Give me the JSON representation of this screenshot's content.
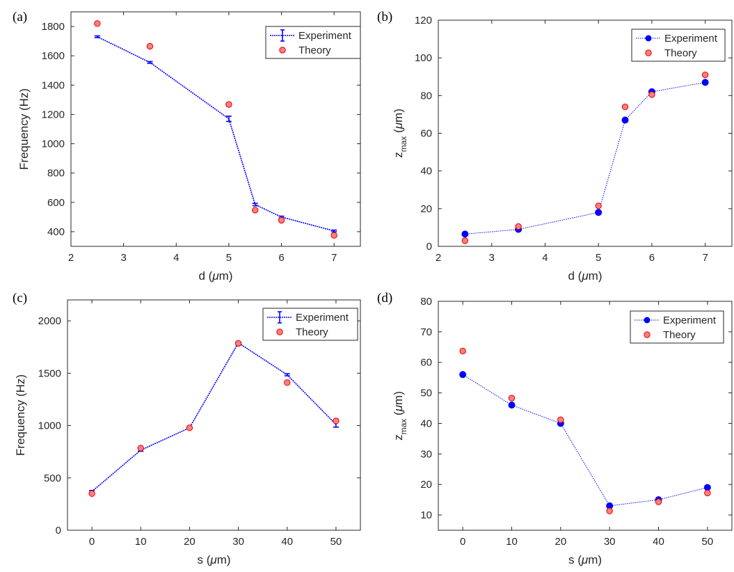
{
  "figure": {
    "panels": [
      "(a)",
      "(b)",
      "(c)",
      "(d)"
    ]
  },
  "colors": {
    "experiment": "#0000ff",
    "theory_fill": "#ff7f7f",
    "theory_edge": "#e00000",
    "axis": "#262626"
  },
  "chart_data": [
    {
      "id": "a",
      "panel_label": "(a)",
      "type": "line",
      "xlabel_pre": "d (",
      "xlabel_sym": "μ",
      "xlabel_post": "m)",
      "ylabel": "Frequency (Hz)",
      "xlim": [
        2,
        7.5
      ],
      "ylim": [
        300,
        1900
      ],
      "xticks": [
        2,
        3,
        4,
        5,
        6,
        7
      ],
      "yticks": [
        400,
        600,
        800,
        1000,
        1200,
        1400,
        1600,
        1800
      ],
      "legend_position": "top-right",
      "series": [
        {
          "name": "Experiment",
          "style": "errorbar",
          "x": [
            2.5,
            3.5,
            5,
            5.5,
            6,
            7
          ],
          "y": [
            1730,
            1555,
            1170,
            585,
            500,
            405
          ],
          "err": [
            6,
            6,
            18,
            8,
            6,
            6
          ]
        },
        {
          "name": "Theory",
          "style": "marker",
          "x": [
            2.5,
            3.5,
            5,
            5.5,
            6,
            7
          ],
          "y": [
            1820,
            1665,
            1268,
            547,
            478,
            375
          ]
        }
      ]
    },
    {
      "id": "b",
      "panel_label": "(b)",
      "type": "line",
      "xlabel_pre": "d (",
      "xlabel_sym": "μ",
      "xlabel_post": "m)",
      "ylabel": "z",
      "ylabel_sub": "max",
      "ylabel_post_pre": " (",
      "ylabel_sym": "μ",
      "ylabel_post": "m)",
      "xlim": [
        2,
        7.5
      ],
      "ylim": [
        0,
        120
      ],
      "xticks": [
        2,
        3,
        4,
        5,
        6,
        7
      ],
      "yticks": [
        0,
        20,
        40,
        60,
        80,
        100,
        120
      ],
      "legend_position": "top-right",
      "series": [
        {
          "name": "Experiment",
          "style": "dot",
          "x": [
            2.5,
            3.5,
            5,
            5.5,
            6,
            7
          ],
          "y": [
            6.5,
            9,
            18,
            67,
            82,
            87
          ]
        },
        {
          "name": "Theory",
          "style": "marker",
          "x": [
            2.5,
            3.5,
            5,
            5.5,
            6,
            7
          ],
          "y": [
            3,
            10.5,
            21.5,
            74,
            80.5,
            91
          ]
        }
      ]
    },
    {
      "id": "c",
      "panel_label": "(c)",
      "type": "line",
      "xlabel_pre": "s (",
      "xlabel_sym": "μ",
      "xlabel_post": "m)",
      "ylabel": "Frequency (Hz)",
      "xlim": [
        -5,
        55
      ],
      "ylim": [
        0,
        2200
      ],
      "xticks": [
        0,
        10,
        20,
        30,
        40,
        50
      ],
      "yticks": [
        0,
        500,
        1000,
        1500,
        2000
      ],
      "legend_position": "top-right",
      "series": [
        {
          "name": "Experiment",
          "style": "errorbar",
          "x": [
            0,
            10,
            20,
            30,
            40,
            50
          ],
          "y": [
            370,
            765,
            978,
            1790,
            1485,
            1010
          ],
          "err": [
            10,
            10,
            10,
            10,
            10,
            25
          ]
        },
        {
          "name": "Theory",
          "style": "marker",
          "x": [
            0,
            10,
            20,
            30,
            40,
            50
          ],
          "y": [
            350,
            785,
            978,
            1785,
            1410,
            1045
          ]
        }
      ]
    },
    {
      "id": "d",
      "panel_label": "(d)",
      "type": "line",
      "xlabel_pre": "s (",
      "xlabel_sym": "μ",
      "xlabel_post": "m)",
      "ylabel": "z",
      "ylabel_sub": "max",
      "ylabel_post_pre": " (",
      "ylabel_sym": "μ",
      "ylabel_post": "m)",
      "xlim": [
        -5,
        55
      ],
      "ylim": [
        5,
        80
      ],
      "xticks": [
        0,
        10,
        20,
        30,
        40,
        50
      ],
      "yticks": [
        10,
        20,
        30,
        40,
        50,
        60,
        70,
        80
      ],
      "legend_position": "top-right",
      "series": [
        {
          "name": "Experiment",
          "style": "dot",
          "x": [
            0,
            10,
            20,
            30,
            40,
            50
          ],
          "y": [
            56,
            46,
            40,
            13,
            15,
            19
          ]
        },
        {
          "name": "Theory",
          "style": "marker",
          "x": [
            0,
            10,
            20,
            30,
            40,
            50
          ],
          "y": [
            63.7,
            48.3,
            41.2,
            11.3,
            14.3,
            17.2
          ]
        }
      ]
    }
  ]
}
